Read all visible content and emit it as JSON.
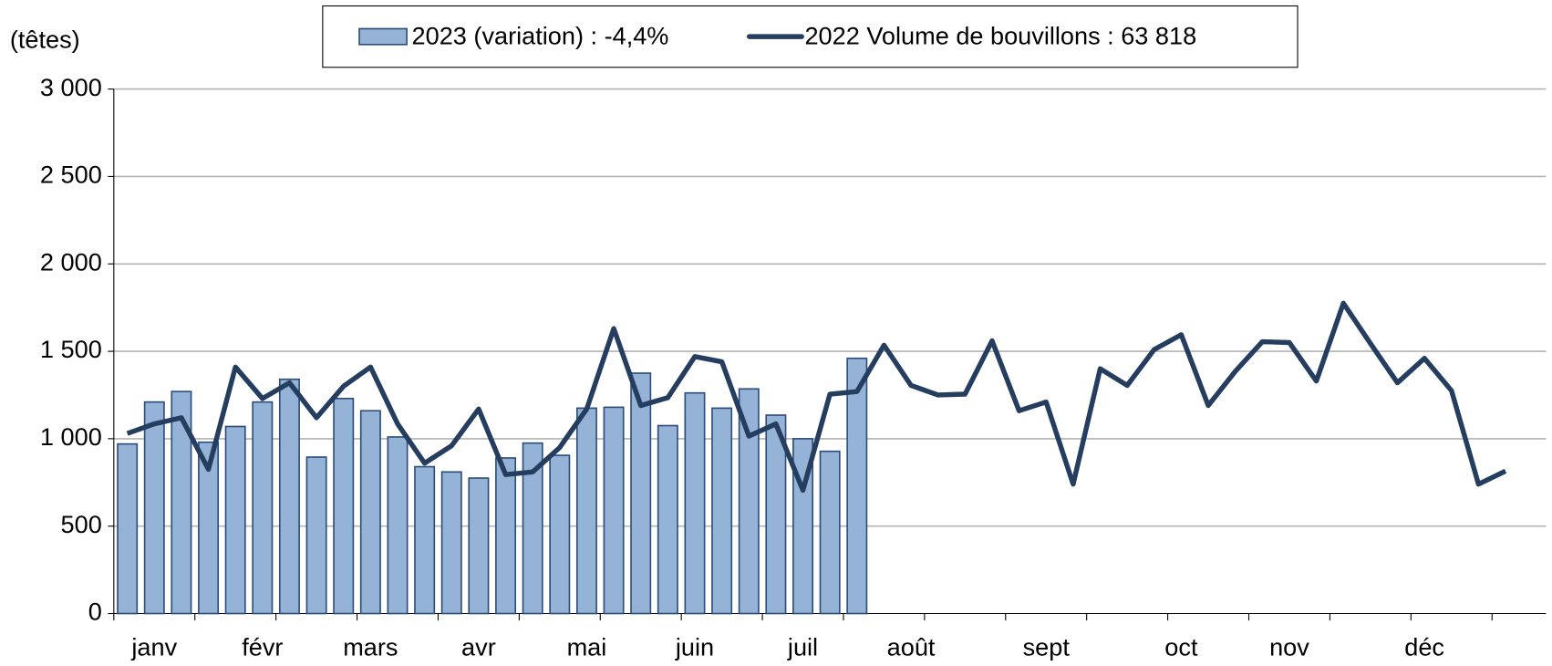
{
  "chart_data": {
    "type": "bar+line",
    "y_label": "(têtes)",
    "categories": [
      null,
      "janv",
      null,
      null,
      null,
      "févr",
      null,
      null,
      null,
      "mars",
      null,
      null,
      null,
      "avr",
      null,
      null,
      null,
      "mai",
      null,
      null,
      null,
      "juin",
      null,
      null,
      null,
      "juil",
      null,
      null,
      null,
      "août",
      null,
      null,
      null,
      null,
      "sept",
      null,
      null,
      null,
      null,
      "oct",
      null,
      null,
      null,
      "nov",
      null,
      null,
      null,
      null,
      "déc",
      null,
      null,
      null,
      null
    ],
    "series": [
      {
        "name": "2023 (variation) : -4,4%",
        "type": "bar",
        "color": "#95b3d7",
        "edge": "#2c4d7a",
        "values": [
          970,
          1210,
          1270,
          980,
          1070,
          1210,
          1340,
          895,
          1230,
          1160,
          1010,
          840,
          810,
          775,
          890,
          975,
          905,
          1175,
          1180,
          1375,
          1075,
          1262,
          1175,
          1285,
          1135,
          1000,
          928,
          1460,
          null,
          null,
          null,
          null,
          null,
          null,
          null,
          null,
          null,
          null,
          null,
          null,
          null,
          null,
          null,
          null,
          null,
          null,
          null,
          null,
          null,
          null,
          null,
          null,
          null
        ]
      },
      {
        "name": "2022 Volume de bouvillons : 63 818",
        "type": "line",
        "color": "#253d5e",
        "values": [
          1030,
          1085,
          1120,
          825,
          1410,
          1230,
          1320,
          1120,
          1300,
          1410,
          1085,
          860,
          960,
          1170,
          795,
          810,
          950,
          1170,
          1630,
          1190,
          1235,
          1470,
          1440,
          1015,
          1085,
          705,
          1255,
          1270,
          1535,
          1305,
          1250,
          1255,
          1560,
          1160,
          1210,
          740,
          1400,
          1305,
          1510,
          1595,
          1190,
          1385,
          1555,
          1550,
          1330,
          1775,
          1545,
          1320,
          1460,
          1275,
          740,
          815,
          null
        ]
      }
    ],
    "ylim": [
      0,
      3000
    ],
    "yticks": [
      0,
      500,
      {
        "value": 1000,
        "label": "1 000"
      },
      {
        "value": 1500,
        "label": "1 500"
      },
      {
        "value": 2000,
        "label": "2 000"
      },
      {
        "value": 2500,
        "label": "2 500"
      },
      {
        "value": 3000,
        "label": "3 000"
      }
    ],
    "grid": true,
    "legend": "top"
  }
}
